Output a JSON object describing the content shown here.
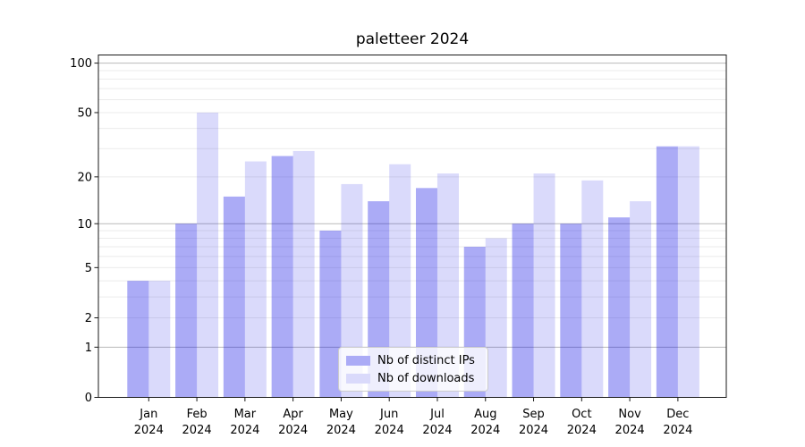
{
  "title": "paletteer 2024",
  "legend": {
    "items": [
      {
        "label": "Nb of distinct IPs",
        "swatch_color": "#ababf6"
      },
      {
        "label": "Nb of downloads",
        "swatch_color": "#dadafb"
      }
    ]
  },
  "chart_data": {
    "type": "bar",
    "title": "paletteer 2024",
    "categories": [
      "Jan",
      "Feb",
      "Mar",
      "Apr",
      "May",
      "Jun",
      "Jul",
      "Aug",
      "Sep",
      "Oct",
      "Nov",
      "Dec"
    ],
    "category_year": "2024",
    "series": [
      {
        "name": "Nb of distinct IPs",
        "color": "rgba(10,10,230,0.34)",
        "values": [
          4,
          10,
          15,
          27,
          9,
          14,
          17,
          7,
          10,
          10,
          11,
          31
        ]
      },
      {
        "name": "Nb of downloads",
        "color": "rgba(10,10,230,0.15)",
        "values": [
          4,
          50,
          25,
          29,
          18,
          24,
          21,
          8,
          21,
          19,
          14,
          31
        ]
      }
    ],
    "yscale": "log1p",
    "ylim": [
      0,
      112
    ],
    "y_ticks": [
      0,
      1,
      2,
      5,
      10,
      20,
      50,
      100
    ],
    "y_major_grid": [
      1,
      10,
      100
    ],
    "y_minor_grid": [
      2,
      3,
      4,
      5,
      6,
      7,
      8,
      9,
      20,
      30,
      40,
      50,
      60,
      70,
      80,
      90
    ],
    "grid": true,
    "legend_position": "lower center",
    "colors": {
      "major_grid": "#b9b9b9",
      "minor_grid": "#ebebeb",
      "spine": "#1a1a1a",
      "tick_text": "#000000"
    }
  }
}
